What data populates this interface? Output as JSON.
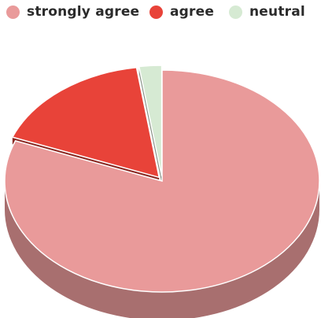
{
  "chart_data": {
    "type": "pie",
    "style": "3d",
    "legend_position": "top",
    "slices": [
      {
        "label": "strongly agree",
        "value": 80.9,
        "color": "#e99a9a"
      },
      {
        "label": "agree",
        "value": 16.8,
        "color": "#e84339"
      },
      {
        "label": "neutral",
        "value": 2.3,
        "color": "#d6ead3"
      }
    ]
  }
}
